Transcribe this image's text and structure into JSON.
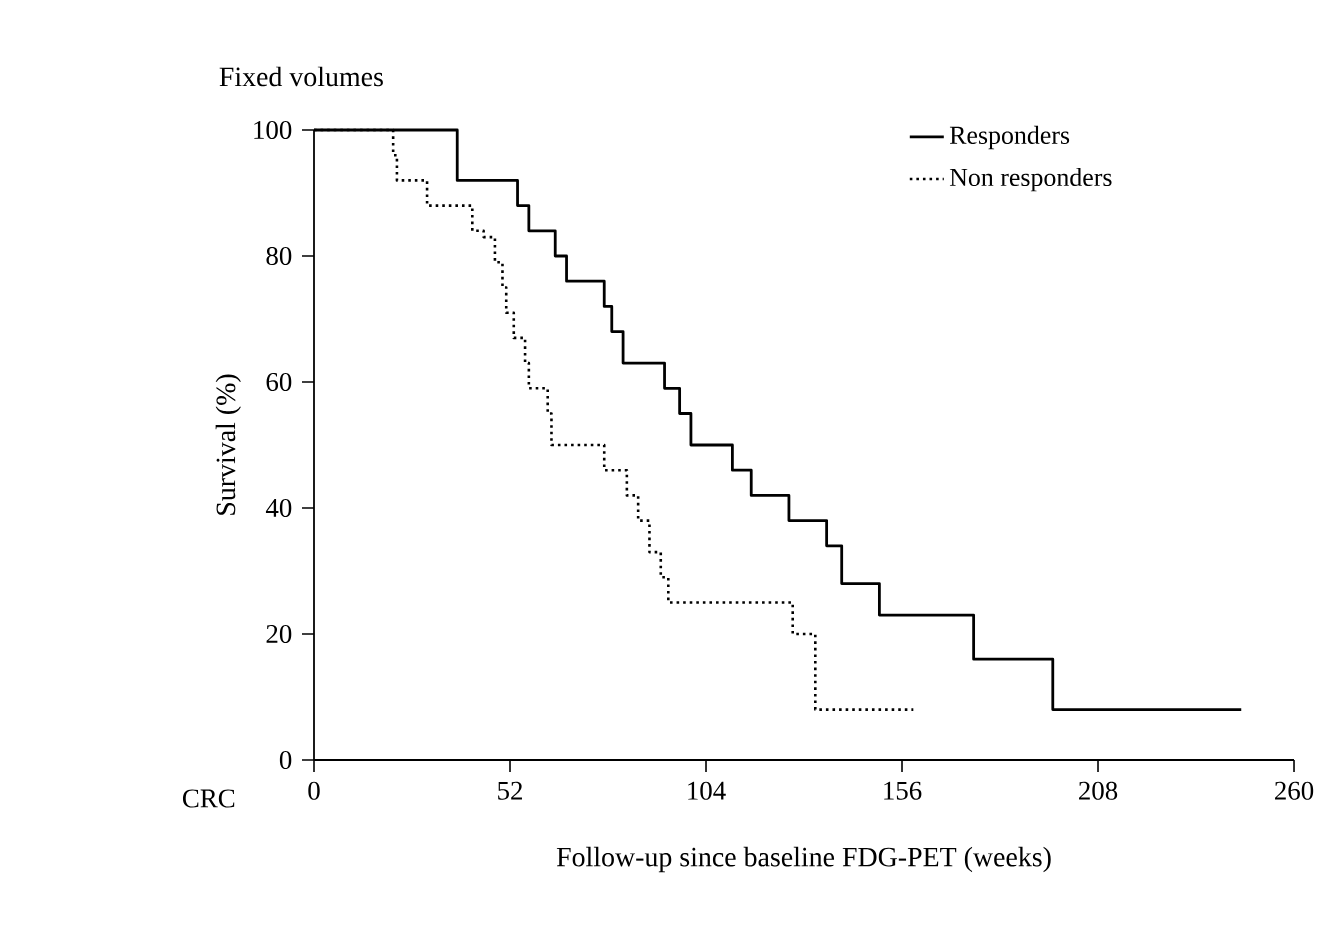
{
  "chart_data": {
    "type": "step",
    "title": "Fixed volumes",
    "xlabel": "Follow-up since baseline FDG-PET (weeks)",
    "ylabel": "Survival (%)",
    "annotations": [
      "CRC"
    ],
    "xlim": [
      0,
      260
    ],
    "xticks": [
      0,
      52,
      104,
      156,
      208,
      260
    ],
    "ylim": [
      0,
      100
    ],
    "yticks": [
      0,
      20,
      40,
      60,
      80,
      100
    ],
    "legend": "top right",
    "grid": false,
    "series": [
      {
        "name": "Responders",
        "color": "#000000",
        "line_style": "solid",
        "x": [
          0,
          38,
          54,
          57,
          64,
          67,
          77,
          79,
          82,
          93,
          97,
          100,
          111,
          116,
          126,
          136,
          140,
          150,
          175,
          196,
          246
        ],
        "values": [
          100,
          92,
          88,
          84,
          80,
          76,
          72,
          68,
          63,
          59,
          55,
          50,
          46,
          42,
          38,
          34,
          28,
          23,
          16,
          8,
          8
        ]
      },
      {
        "name": "Non responders",
        "color": "#000000",
        "line_style": "dotted",
        "x": [
          0,
          21,
          22,
          30,
          42,
          45,
          48,
          50,
          51,
          53,
          56,
          57,
          62,
          63,
          77,
          83,
          86,
          89,
          92,
          94,
          127,
          133,
          159
        ],
        "values": [
          100,
          96,
          92,
          88,
          84,
          83,
          79,
          75,
          71,
          67,
          63,
          59,
          55,
          50,
          46,
          42,
          38,
          33,
          29,
          25,
          20,
          8,
          8
        ]
      }
    ]
  }
}
